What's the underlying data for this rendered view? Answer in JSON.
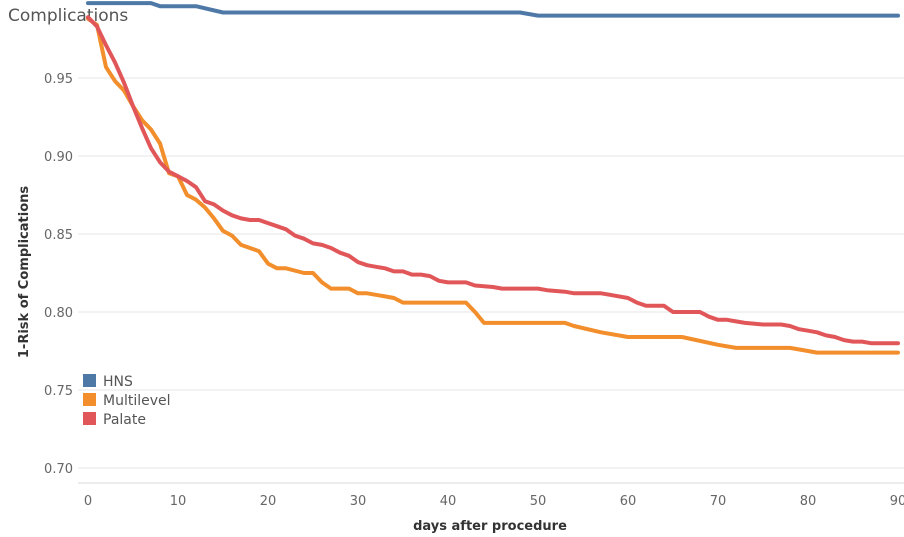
{
  "chart_data": {
    "type": "line",
    "title": "Complications",
    "xlabel": "days after procedure",
    "ylabel": "1-Risk of Complications",
    "xlim": [
      0,
      90
    ],
    "ylim": [
      0.7,
      1.0
    ],
    "x_ticks": [
      "0",
      "10",
      "20",
      "30",
      "40",
      "50",
      "60",
      "70",
      "80",
      "90"
    ],
    "y_ticks": [
      "0.70",
      "0.75",
      "0.80",
      "0.85",
      "0.90",
      "0.95"
    ],
    "grid": "horizontal",
    "legend_position": "bottom-left",
    "series": [
      {
        "name": "HNS",
        "color": "#4e79a7",
        "points": [
          [
            0,
            0.998
          ],
          [
            7,
            0.998
          ],
          [
            8,
            0.996
          ],
          [
            12,
            0.996
          ],
          [
            15,
            0.992
          ],
          [
            48,
            0.992
          ],
          [
            50,
            0.99
          ],
          [
            90,
            0.99
          ]
        ]
      },
      {
        "name": "Multilevel",
        "color": "#f28e2b",
        "points": [
          [
            0,
            0.988
          ],
          [
            1,
            0.984
          ],
          [
            2,
            0.957
          ],
          [
            3,
            0.948
          ],
          [
            4,
            0.942
          ],
          [
            5,
            0.932
          ],
          [
            6,
            0.923
          ],
          [
            7,
            0.917
          ],
          [
            8,
            0.908
          ],
          [
            9,
            0.889
          ],
          [
            10,
            0.887
          ],
          [
            11,
            0.875
          ],
          [
            12,
            0.872
          ],
          [
            13,
            0.867
          ],
          [
            14,
            0.86
          ],
          [
            15,
            0.852
          ],
          [
            16,
            0.849
          ],
          [
            17,
            0.843
          ],
          [
            18,
            0.841
          ],
          [
            19,
            0.839
          ],
          [
            20,
            0.831
          ],
          [
            21,
            0.828
          ],
          [
            22,
            0.828
          ],
          [
            24,
            0.825
          ],
          [
            25,
            0.825
          ],
          [
            26,
            0.819
          ],
          [
            27,
            0.815
          ],
          [
            29,
            0.815
          ],
          [
            30,
            0.812
          ],
          [
            31,
            0.812
          ],
          [
            33,
            0.81
          ],
          [
            34,
            0.809
          ],
          [
            35,
            0.806
          ],
          [
            42,
            0.806
          ],
          [
            43,
            0.8
          ],
          [
            44,
            0.793
          ],
          [
            53,
            0.793
          ],
          [
            54,
            0.791
          ],
          [
            57,
            0.787
          ],
          [
            60,
            0.784
          ],
          [
            66,
            0.784
          ],
          [
            70,
            0.779
          ],
          [
            72,
            0.777
          ],
          [
            78,
            0.777
          ],
          [
            80,
            0.775
          ],
          [
            81,
            0.774
          ],
          [
            90,
            0.774
          ]
        ]
      },
      {
        "name": "Palate",
        "color": "#e15759",
        "points": [
          [
            0,
            0.989
          ],
          [
            1,
            0.983
          ],
          [
            2,
            0.971
          ],
          [
            3,
            0.96
          ],
          [
            4,
            0.947
          ],
          [
            5,
            0.932
          ],
          [
            6,
            0.918
          ],
          [
            7,
            0.905
          ],
          [
            8,
            0.896
          ],
          [
            9,
            0.89
          ],
          [
            10,
            0.887
          ],
          [
            11,
            0.884
          ],
          [
            12,
            0.88
          ],
          [
            13,
            0.871
          ],
          [
            14,
            0.869
          ],
          [
            15,
            0.865
          ],
          [
            16,
            0.862
          ],
          [
            17,
            0.86
          ],
          [
            18,
            0.859
          ],
          [
            19,
            0.859
          ],
          [
            20,
            0.857
          ],
          [
            21,
            0.855
          ],
          [
            22,
            0.853
          ],
          [
            23,
            0.849
          ],
          [
            24,
            0.847
          ],
          [
            25,
            0.844
          ],
          [
            26,
            0.843
          ],
          [
            27,
            0.841
          ],
          [
            28,
            0.838
          ],
          [
            29,
            0.836
          ],
          [
            30,
            0.832
          ],
          [
            31,
            0.83
          ],
          [
            32,
            0.829
          ],
          [
            33,
            0.828
          ],
          [
            34,
            0.826
          ],
          [
            35,
            0.826
          ],
          [
            36,
            0.824
          ],
          [
            37,
            0.824
          ],
          [
            38,
            0.823
          ],
          [
            39,
            0.82
          ],
          [
            40,
            0.819
          ],
          [
            42,
            0.819
          ],
          [
            43,
            0.817
          ],
          [
            45,
            0.816
          ],
          [
            46,
            0.815
          ],
          [
            50,
            0.815
          ],
          [
            51,
            0.814
          ],
          [
            53,
            0.813
          ],
          [
            54,
            0.812
          ],
          [
            57,
            0.812
          ],
          [
            58,
            0.811
          ],
          [
            60,
            0.809
          ],
          [
            61,
            0.806
          ],
          [
            62,
            0.804
          ],
          [
            64,
            0.804
          ],
          [
            65,
            0.8
          ],
          [
            68,
            0.8
          ],
          [
            69,
            0.797
          ],
          [
            70,
            0.795
          ],
          [
            71,
            0.795
          ],
          [
            72,
            0.794
          ],
          [
            73,
            0.793
          ],
          [
            75,
            0.792
          ],
          [
            77,
            0.792
          ],
          [
            78,
            0.791
          ],
          [
            79,
            0.789
          ],
          [
            80,
            0.788
          ],
          [
            81,
            0.787
          ],
          [
            82,
            0.785
          ],
          [
            83,
            0.784
          ],
          [
            84,
            0.782
          ],
          [
            85,
            0.781
          ],
          [
            86,
            0.781
          ],
          [
            87,
            0.78
          ],
          [
            90,
            0.78
          ]
        ]
      }
    ]
  }
}
